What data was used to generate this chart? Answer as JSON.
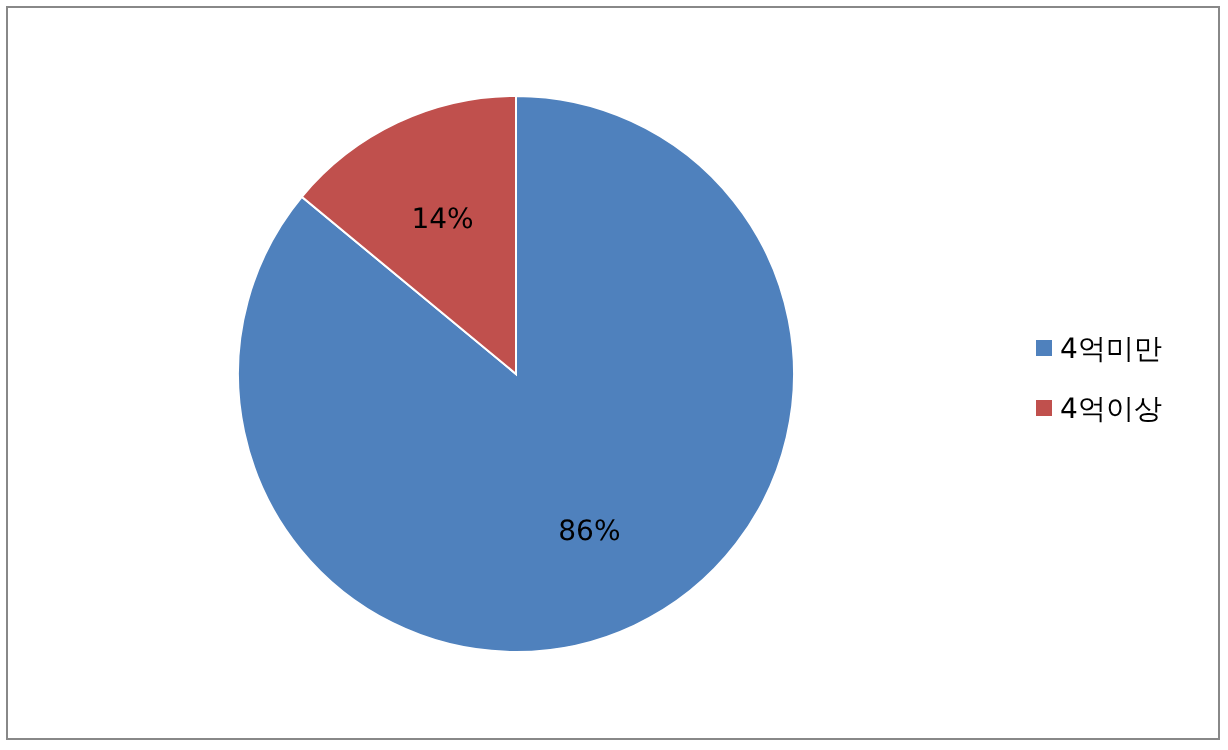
{
  "chart_data": {
    "type": "pie",
    "categories": [
      "4억미만",
      "4억이상"
    ],
    "values": [
      86,
      14
    ],
    "colors": [
      "#4f81bd",
      "#c0504d"
    ],
    "value_labels": [
      "86%",
      "14%"
    ],
    "legend": "right"
  }
}
